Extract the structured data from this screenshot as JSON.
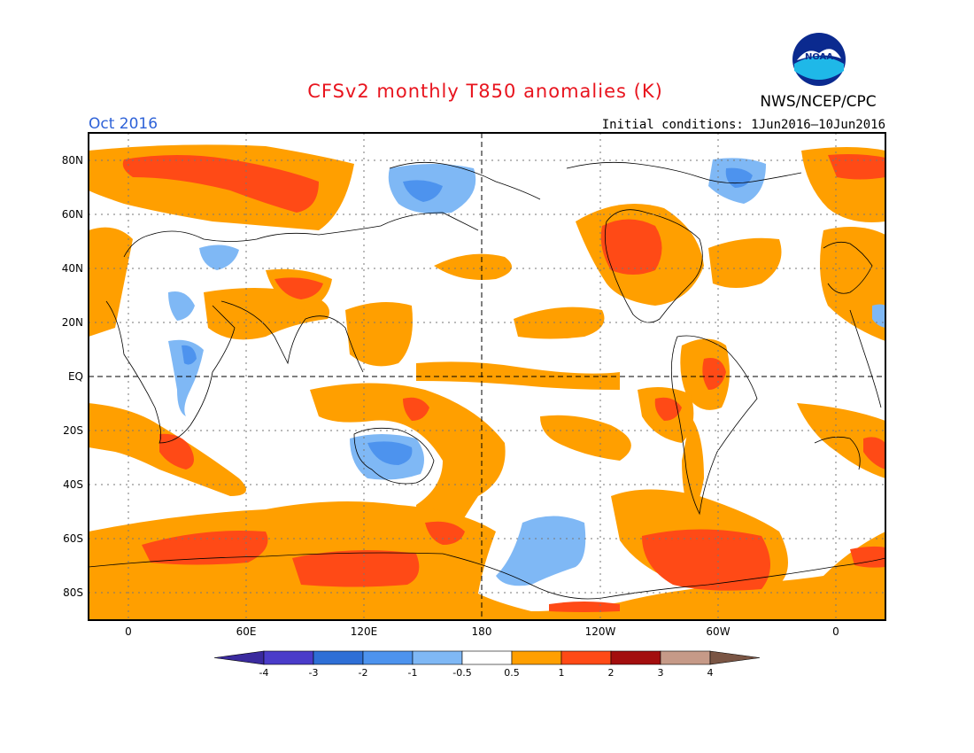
{
  "title": "CFSv2 monthly T850 anomalies (K)",
  "valid_month": "Oct 2016",
  "initial_conditions": "Initial conditions: 1Jun2016–10Jun2016",
  "agency_label": "NWS/NCEP/CPC",
  "logo_text": "NOAA",
  "logo_icon": "noaa-logo-icon",
  "lat_labels": [
    "80N",
    "60N",
    "40N",
    "20N",
    "EQ",
    "20S",
    "40S",
    "60S",
    "80S"
  ],
  "lon_labels": [
    "0",
    "60E",
    "120E",
    "180",
    "120W",
    "60W",
    "0"
  ],
  "colors": {
    "title": "#e8141e",
    "month": "#2e62d8",
    "land": "#000000",
    "grid": "#555555"
  },
  "colorbar": {
    "labels": [
      "-4",
      "-3",
      "-2",
      "-1",
      "-0.5",
      "0.5",
      "1",
      "2",
      "3",
      "4"
    ],
    "colors": [
      "#3a2a9e",
      "#4a3cc9",
      "#2e6fd6",
      "#4d93ee",
      "#7fb8f5",
      "#ffffff",
      "#ff9f00",
      "#ff4a16",
      "#a30e0e",
      "#c69a88",
      "#7a5544"
    ]
  }
}
